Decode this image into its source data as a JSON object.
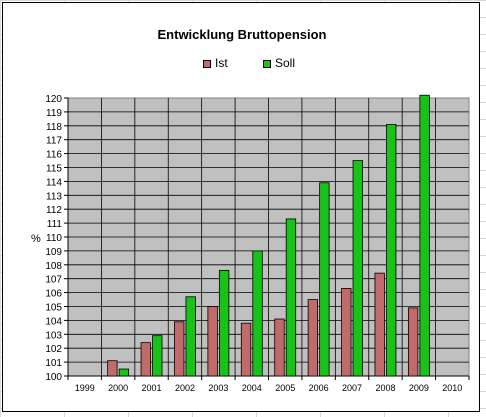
{
  "chart_data": {
    "type": "bar",
    "title": "Entwicklung Bruttopension",
    "xlabel": "",
    "ylabel": "%",
    "categories": [
      "1999",
      "2000",
      "2001",
      "2002",
      "2003",
      "2004",
      "2005",
      "2006",
      "2007",
      "2008",
      "2009",
      "2010"
    ],
    "series": [
      {
        "name": "Ist",
        "color": "#c06a6a",
        "values": [
          null,
          101.1,
          102.4,
          103.9,
          105.0,
          103.8,
          104.1,
          105.5,
          106.3,
          107.4,
          104.9,
          null
        ]
      },
      {
        "name": "Soll",
        "color": "#18c218",
        "values": [
          null,
          100.5,
          102.9,
          105.7,
          107.6,
          109.0,
          111.3,
          113.9,
          115.5,
          118.1,
          120.2,
          null
        ]
      }
    ],
    "ylim": [
      100,
      120
    ],
    "yticks": [
      100,
      101,
      102,
      103,
      104,
      105,
      106,
      107,
      108,
      109,
      110,
      111,
      112,
      113,
      114,
      115,
      116,
      117,
      118,
      119,
      120
    ],
    "plot_background": "#c0c0c0",
    "grid": true,
    "legend_position": "top"
  }
}
